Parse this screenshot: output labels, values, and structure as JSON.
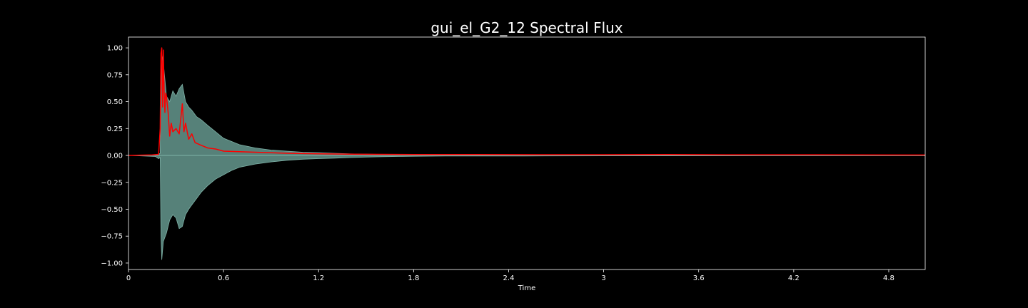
{
  "chart_data": {
    "type": "line",
    "title": "gui_el_G2_12 Spectral Flux",
    "xlabel": "Time",
    "ylabel": "",
    "xlim": [
      0,
      5.03
    ],
    "ylim": [
      -1.06,
      1.1
    ],
    "x_ticks": [
      0,
      0.6,
      1.2,
      1.8,
      2.4,
      3,
      3.6,
      4.2,
      4.8
    ],
    "x_tick_labels": [
      "0",
      "0.6",
      "1.2",
      "1.8",
      "2.4",
      "3",
      "3.6",
      "4.2",
      "4.8"
    ],
    "y_ticks": [
      -1.0,
      -0.75,
      -0.5,
      -0.25,
      0.0,
      0.25,
      0.5,
      0.75,
      1.0
    ],
    "y_tick_labels": [
      "−1.00",
      "−0.75",
      "−0.50",
      "−0.25",
      "0.00",
      "0.25",
      "0.50",
      "0.75",
      "1.00"
    ],
    "grid": false,
    "legend": "none",
    "colors": {
      "background": "#000000",
      "waveform": "#5f8f86",
      "waveform_edge": "#7fb3a8",
      "flux": "#ff0000",
      "axes": "#ffffff"
    },
    "series": [
      {
        "kind": "waveform-envelope",
        "x": [
          0,
          0.17,
          0.19,
          0.2,
          0.205,
          0.21,
          0.22,
          0.24,
          0.26,
          0.28,
          0.3,
          0.32,
          0.34,
          0.36,
          0.38,
          0.4,
          0.43,
          0.46,
          0.5,
          0.55,
          0.6,
          0.65,
          0.7,
          0.8,
          0.9,
          1.0,
          1.1,
          1.2,
          1.3,
          1.4,
          1.5,
          1.6,
          1.7,
          1.8,
          2.0,
          2.5,
          3.0,
          3.5,
          4.0,
          4.5,
          5.03
        ],
        "upper": [
          0.0,
          0.005,
          0.01,
          0.02,
          0.6,
          0.95,
          0.86,
          0.55,
          0.5,
          0.6,
          0.55,
          0.62,
          0.66,
          0.5,
          0.45,
          0.42,
          0.36,
          0.33,
          0.28,
          0.22,
          0.16,
          0.13,
          0.1,
          0.07,
          0.05,
          0.04,
          0.03,
          0.025,
          0.02,
          0.015,
          0.012,
          0.01,
          0.008,
          0.006,
          0.005,
          0.004,
          0.004,
          0.004,
          0.003,
          0.003,
          0.003
        ],
        "lower": [
          0.0,
          -0.01,
          -0.03,
          -0.02,
          -0.75,
          -0.97,
          -0.8,
          -0.72,
          -0.6,
          -0.55,
          -0.58,
          -0.68,
          -0.66,
          -0.55,
          -0.5,
          -0.46,
          -0.4,
          -0.34,
          -0.28,
          -0.22,
          -0.18,
          -0.14,
          -0.11,
          -0.08,
          -0.06,
          -0.045,
          -0.035,
          -0.03,
          -0.025,
          -0.02,
          -0.015,
          -0.012,
          -0.01,
          -0.008,
          -0.006,
          -0.005,
          -0.004,
          -0.004,
          -0.003,
          -0.003,
          -0.003
        ]
      },
      {
        "kind": "spectral-flux",
        "x": [
          0,
          0.15,
          0.19,
          0.2,
          0.205,
          0.21,
          0.215,
          0.22,
          0.225,
          0.23,
          0.235,
          0.24,
          0.25,
          0.26,
          0.27,
          0.28,
          0.3,
          0.32,
          0.34,
          0.35,
          0.36,
          0.38,
          0.4,
          0.42,
          0.45,
          0.5,
          0.55,
          0.6,
          0.7,
          0.8,
          0.9,
          1.0,
          1.2,
          1.4,
          1.6,
          1.8,
          2.2,
          2.6,
          3.0,
          3.4,
          3.8,
          4.2,
          4.6,
          5.03
        ],
        "values": [
          0.0,
          0.005,
          0.01,
          0.25,
          0.95,
          1.0,
          0.45,
          0.98,
          0.6,
          0.4,
          0.58,
          0.55,
          0.4,
          0.18,
          0.3,
          0.22,
          0.25,
          0.2,
          0.48,
          0.22,
          0.3,
          0.15,
          0.2,
          0.12,
          0.1,
          0.07,
          0.06,
          0.04,
          0.035,
          0.03,
          0.025,
          0.02,
          0.015,
          0.012,
          0.01,
          0.008,
          0.008,
          0.007,
          0.007,
          0.008,
          0.006,
          0.006,
          0.005,
          0.004
        ]
      }
    ]
  }
}
